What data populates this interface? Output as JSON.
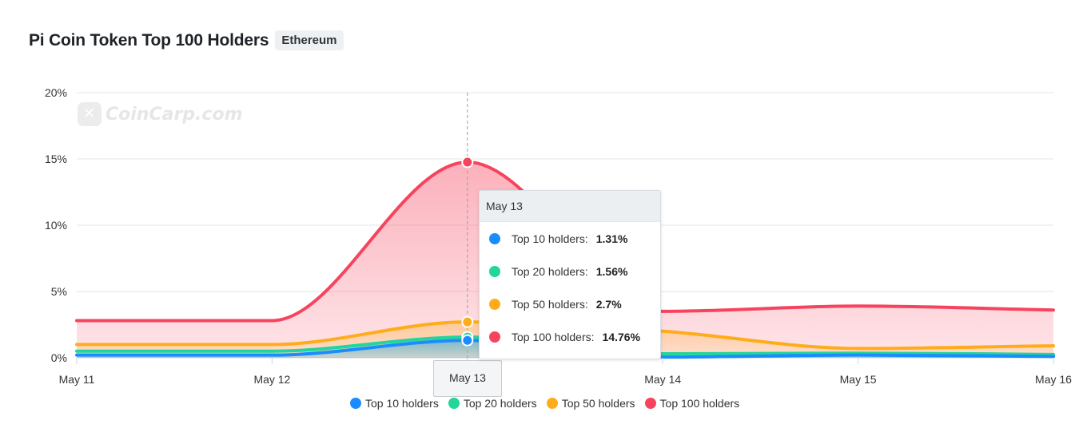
{
  "header": {
    "title": "Pi Coin Token Top 100 Holders",
    "network_badge": "Ethereum"
  },
  "watermark": {
    "text": "CoinCarp.com"
  },
  "chart_data": {
    "type": "area",
    "title": "Pi Coin Token Top 100 Holders",
    "x": [
      "May 11",
      "May 12",
      "May 13",
      "May 14",
      "May 15",
      "May 16"
    ],
    "y_ticks": [
      "0%",
      "5%",
      "10%",
      "15%",
      "20%"
    ],
    "ylim": [
      0,
      20
    ],
    "grid": true,
    "legend_position": "bottom-center",
    "series": [
      {
        "name": "Top 10 holders",
        "color": "#1a8cff",
        "values": [
          0.2,
          0.2,
          1.31,
          0.05,
          0.2,
          0.1
        ]
      },
      {
        "name": "Top 20 holders",
        "color": "#22d59a",
        "values": [
          0.5,
          0.5,
          1.56,
          0.3,
          0.35,
          0.25
        ]
      },
      {
        "name": "Top 50 holders",
        "color": "#ffac1c",
        "values": [
          1.0,
          1.0,
          2.7,
          2.0,
          0.7,
          0.9
        ]
      },
      {
        "name": "Top 100 holders",
        "color": "#f7445e",
        "values": [
          2.8,
          2.8,
          14.76,
          3.5,
          3.9,
          3.6
        ]
      }
    ]
  },
  "tooltip": {
    "date": "May 13",
    "rows": [
      {
        "label": "Top 10 holders:",
        "value": "1.31%",
        "color": "#1a8cff"
      },
      {
        "label": "Top 20 holders:",
        "value": "1.56%",
        "color": "#22d59a"
      },
      {
        "label": "Top 50 holders:",
        "value": "2.7%",
        "color": "#ffac1c"
      },
      {
        "label": "Top 100 holders:",
        "value": "14.76%",
        "color": "#f7445e"
      }
    ]
  },
  "hover_x_label": "May 13",
  "legend": [
    {
      "label": "Top 10 holders",
      "color": "#1a8cff"
    },
    {
      "label": "Top 20 holders",
      "color": "#22d59a"
    },
    {
      "label": "Top 50 holders",
      "color": "#ffac1c"
    },
    {
      "label": "Top 100 holders",
      "color": "#f7445e"
    }
  ]
}
